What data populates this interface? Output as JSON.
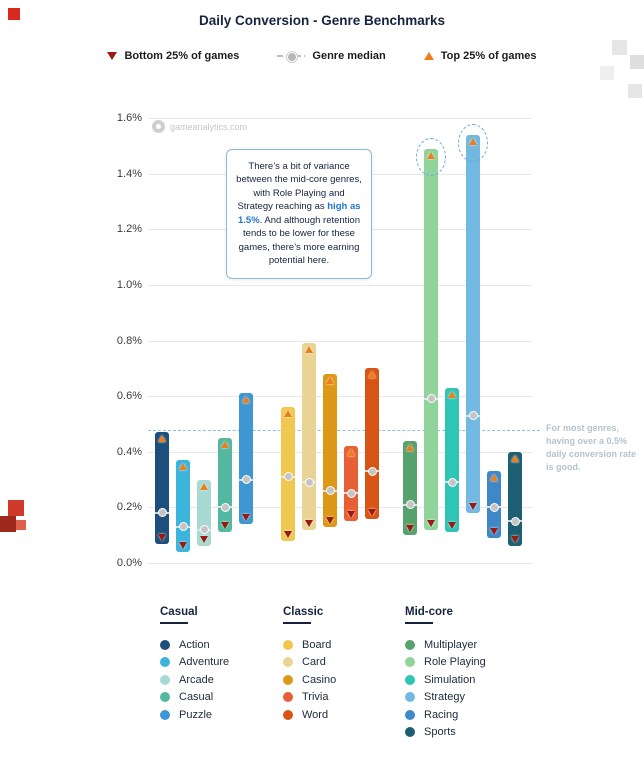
{
  "title": "Daily Conversion - Genre Benchmarks",
  "watermark": "gameanalytics.com",
  "legend_top": {
    "bottom": "Bottom 25% of games",
    "median": "Genre median",
    "top": "Top 25% of games"
  },
  "annotation_box": {
    "text_before": "There’s a bit of variance between the mid-core genres, with Role Playing and Strategy reaching as ",
    "highlight": "high as 1.5%",
    "text_after": ". And although retention tends to be lower for these games, there’s more earning potential here."
  },
  "threshold_note": "For most genres, having over a 0.5% daily conversion rate is good.",
  "colors": {
    "highlight": "#2176d2",
    "text_navy": "#16233f",
    "threshold_note": "#b6c3cd",
    "threshold_line": "#8fc3dc",
    "callout_border": "#8fb8d8",
    "grid": "#e8e8e8"
  },
  "chart_data": {
    "type": "bar",
    "subtype": "floating-range-bars-with-median",
    "title": "Daily Conversion - Genre Benchmarks",
    "xlabel": "",
    "ylabel": "",
    "ylim": [
      0,
      1.6
    ],
    "yticks": [
      "0.0%",
      "0.2%",
      "0.4%",
      "0.6%",
      "0.8%",
      "1.0%",
      "1.2%",
      "1.4%",
      "1.6%"
    ],
    "grid": true,
    "threshold_value": 0.48,
    "legend_position": "bottom",
    "markers": {
      "bottom_color": "#9a1a12",
      "median_color": "#c4c4c4",
      "top_color": "#ee7d1c"
    },
    "groups": [
      {
        "name": "Casual",
        "bars": [
          {
            "genre": "Action",
            "color": "#1d4f7c",
            "low": 0.07,
            "median": 0.18,
            "high": 0.47
          },
          {
            "genre": "Adventure",
            "color": "#3cb4dc",
            "low": 0.04,
            "median": 0.13,
            "high": 0.37
          },
          {
            "genre": "Arcade",
            "color": "#a7d9d3",
            "low": 0.06,
            "median": 0.12,
            "high": 0.3
          },
          {
            "genre": "Casual",
            "color": "#54b8a0",
            "low": 0.11,
            "median": 0.2,
            "high": 0.45
          },
          {
            "genre": "Puzzle",
            "color": "#3e96d2",
            "low": 0.14,
            "median": 0.3,
            "high": 0.61
          }
        ]
      },
      {
        "name": "Classic",
        "bars": [
          {
            "genre": "Board",
            "color": "#f0c84f",
            "low": 0.08,
            "median": 0.31,
            "high": 0.56
          },
          {
            "genre": "Card",
            "color": "#e9d494",
            "low": 0.12,
            "median": 0.29,
            "high": 0.79
          },
          {
            "genre": "Casino",
            "color": "#dd9818",
            "low": 0.13,
            "median": 0.26,
            "high": 0.68
          },
          {
            "genre": "Trivia",
            "color": "#e75f35",
            "low": 0.15,
            "median": 0.25,
            "high": 0.42
          },
          {
            "genre": "Word",
            "color": "#d85414",
            "low": 0.16,
            "median": 0.33,
            "high": 0.7
          }
        ]
      },
      {
        "name": "Mid-core",
        "bars": [
          {
            "genre": "Multiplayer",
            "color": "#57a16c",
            "low": 0.1,
            "median": 0.21,
            "high": 0.44
          },
          {
            "genre": "Role Playing",
            "color": "#90d49c",
            "low": 0.12,
            "median": 0.59,
            "high": 1.49,
            "highlight": true
          },
          {
            "genre": "Simulation",
            "color": "#2ec4b6",
            "low": 0.11,
            "median": 0.29,
            "high": 0.63
          },
          {
            "genre": "Strategy",
            "color": "#72b8e0",
            "low": 0.18,
            "median": 0.53,
            "high": 1.54,
            "highlight": true
          },
          {
            "genre": "Racing",
            "color": "#3e88c8",
            "low": 0.09,
            "median": 0.2,
            "high": 0.33
          },
          {
            "genre": "Sports",
            "color": "#1d5f72",
            "low": 0.06,
            "median": 0.15,
            "high": 0.4
          }
        ]
      }
    ]
  }
}
